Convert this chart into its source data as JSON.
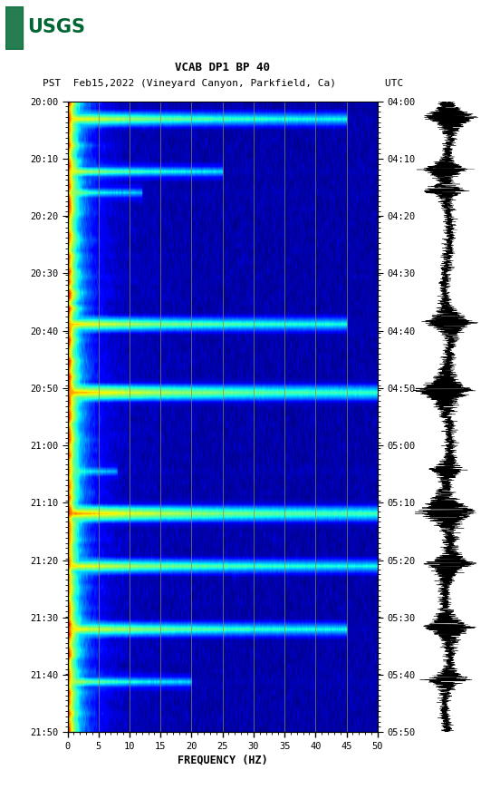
{
  "title_line1": "VCAB DP1 BP 40",
  "title_line2": "PST  Feb15,2022 (Vineyard Canyon, Parkfield, Ca)        UTC",
  "xlabel": "FREQUENCY (HZ)",
  "freq_min": 0,
  "freq_max": 50,
  "freq_ticks": [
    0,
    5,
    10,
    15,
    20,
    25,
    30,
    35,
    40,
    45,
    50
  ],
  "left_time_labels": [
    "20:00",
    "20:10",
    "20:20",
    "20:30",
    "20:40",
    "20:50",
    "21:00",
    "21:10",
    "21:20",
    "21:30",
    "21:40",
    "21:50"
  ],
  "right_time_labels": [
    "04:00",
    "04:10",
    "04:20",
    "04:30",
    "04:40",
    "04:50",
    "05:00",
    "05:10",
    "05:20",
    "05:30",
    "05:40",
    "05:50"
  ],
  "background_color": "#ffffff",
  "colormap": "jet",
  "logo_color": "#006633",
  "grid_line_color": "#888855",
  "n_time": 120,
  "n_freq": 500,
  "seed": 42,
  "event_rows": [
    {
      "row": 3,
      "power": 0.85,
      "freq_cutoff": 45,
      "thickness": 2
    },
    {
      "row": 13,
      "power": 0.8,
      "freq_cutoff": 25,
      "thickness": 1
    },
    {
      "row": 17,
      "power": 0.7,
      "freq_cutoff": 12,
      "thickness": 1
    },
    {
      "row": 42,
      "power": 0.88,
      "freq_cutoff": 45,
      "thickness": 2
    },
    {
      "row": 55,
      "power": 0.95,
      "freq_cutoff": 50,
      "thickness": 3
    },
    {
      "row": 70,
      "power": 0.65,
      "freq_cutoff": 8,
      "thickness": 1
    },
    {
      "row": 78,
      "power": 0.98,
      "freq_cutoff": 50,
      "thickness": 3
    },
    {
      "row": 88,
      "power": 0.85,
      "freq_cutoff": 50,
      "thickness": 2
    },
    {
      "row": 100,
      "power": 0.85,
      "freq_cutoff": 45,
      "thickness": 2
    },
    {
      "row": 110,
      "power": 0.75,
      "freq_cutoff": 20,
      "thickness": 1
    }
  ]
}
